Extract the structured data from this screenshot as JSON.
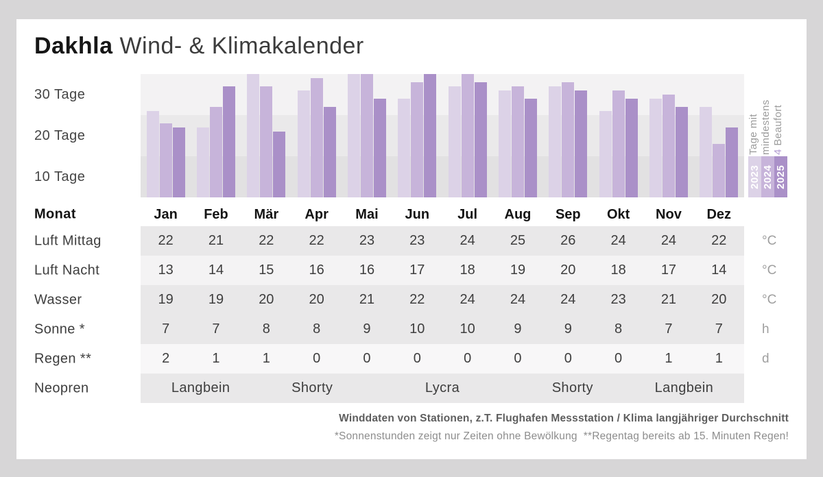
{
  "title": {
    "brand": "Dakhla",
    "rest": "Wind- & Klimakalender"
  },
  "chart_data": {
    "type": "bar",
    "title": "Dakhla Wind- & Klimakalender",
    "value_unit": "Tage",
    "categories": [
      "Jan",
      "Feb",
      "Mär",
      "Apr",
      "Mai",
      "Jun",
      "Jul",
      "Aug",
      "Sep",
      "Okt",
      "Nov",
      "Dez"
    ],
    "series": [
      {
        "name": "2023",
        "color": "#dcd2e7",
        "values": [
          21,
          17,
          30,
          26,
          30,
          24,
          27,
          26,
          27,
          21,
          24,
          22
        ]
      },
      {
        "name": "2024",
        "color": "#c7b4da",
        "values": [
          18,
          22,
          27,
          29,
          30,
          28,
          30,
          27,
          28,
          26,
          25,
          13
        ]
      },
      {
        "name": "2025",
        "color": "#aa90c8",
        "values": [
          17,
          27,
          16,
          22,
          24,
          30,
          28,
          24,
          26,
          24,
          22,
          17
        ]
      }
    ],
    "yticks": [
      "30 Tage",
      "20 Tage",
      "10 Tage"
    ],
    "ylim": [
      0,
      30
    ],
    "grid": "banded",
    "band_colors": [
      "#f3f2f3",
      "#eae9ea",
      "#e2e1e2"
    ],
    "legend_position": "right",
    "side_label": {
      "lines": [
        "Tage mit",
        "mindestens"
      ],
      "accent": "4",
      "accent_rest": " Beaufort",
      "accent_color": "#b29bd1"
    }
  },
  "table": {
    "header_label": "Monat",
    "months": [
      "Jan",
      "Feb",
      "Mär",
      "Apr",
      "Mai",
      "Jun",
      "Jul",
      "Aug",
      "Sep",
      "Okt",
      "Nov",
      "Dez"
    ],
    "row_shades": {
      "dark": "#e9e8e9",
      "light": "#f4f3f4",
      "lighter": "#f8f7f8"
    },
    "rows": [
      {
        "label": "Luft Mittag",
        "unit": "°C",
        "shade": "dark",
        "values": [
          "22",
          "21",
          "22",
          "22",
          "23",
          "23",
          "24",
          "25",
          "26",
          "24",
          "24",
          "22"
        ]
      },
      {
        "label": "Luft Nacht",
        "unit": "°C",
        "shade": "light",
        "values": [
          "13",
          "14",
          "15",
          "16",
          "16",
          "17",
          "18",
          "19",
          "20",
          "18",
          "17",
          "14"
        ]
      },
      {
        "label": "Wasser",
        "unit": "°C",
        "shade": "dark",
        "values": [
          "19",
          "19",
          "20",
          "20",
          "21",
          "22",
          "24",
          "24",
          "24",
          "23",
          "21",
          "20"
        ]
      },
      {
        "label": "Sonne *",
        "unit": "h",
        "shade": "dark",
        "values": [
          "7",
          "7",
          "8",
          "8",
          "9",
          "10",
          "10",
          "9",
          "9",
          "8",
          "7",
          "7"
        ]
      },
      {
        "label": "Regen **",
        "unit": "d",
        "shade": "lighter",
        "values": [
          "2",
          "1",
          "1",
          "0",
          "0",
          "0",
          "0",
          "0",
          "0",
          "0",
          "1",
          "1"
        ]
      }
    ],
    "wetsuit_row": {
      "label": "Neopren",
      "shade": "dark",
      "spans": [
        {
          "text": "Langbein",
          "cols": 2
        },
        {
          "text": "Shorty",
          "cols": 2
        },
        {
          "text": "Lycra",
          "cols": 4
        },
        {
          "text": "Shorty",
          "cols": 2
        },
        {
          "text": "Langbein",
          "cols": 2
        }
      ]
    }
  },
  "footer": {
    "line1": "Winddaten von Stationen, z.T. Flughafen Messstation / Klima langjähriger Durchschnitt",
    "line2": "*Sonnenstunden zeigt nur Zeiten ohne Bewölkung  **Regentag bereits ab 15. Minuten Regen!"
  }
}
